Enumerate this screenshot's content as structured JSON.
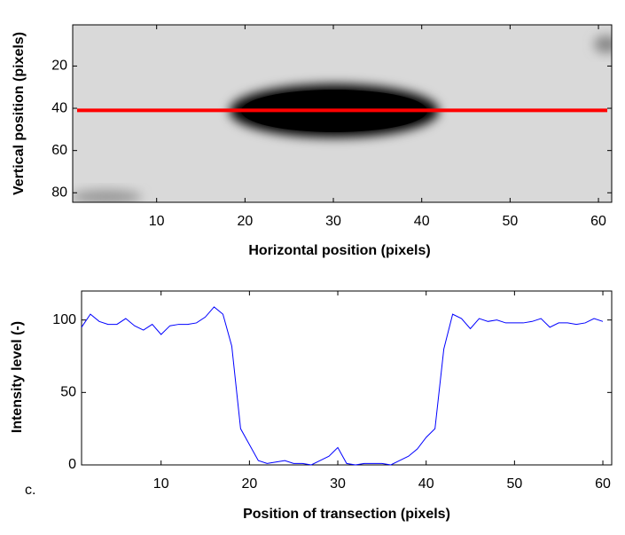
{
  "chart_data": [
    {
      "type": "image",
      "xlabel": "Horizontal position (pixels)",
      "ylabel": "Vertical position (pixels)",
      "xlim": [
        0.5,
        61.5
      ],
      "ylim": [
        0.5,
        84.5
      ],
      "y_inverted": true,
      "xticks": [
        10,
        20,
        30,
        40,
        50,
        60
      ],
      "yticks": [
        20,
        40,
        60,
        80
      ],
      "series": [
        {
          "x": [
            1,
            61
          ],
          "values": [
            41,
            41
          ],
          "color": "#ff0000"
        }
      ]
    },
    {
      "type": "line",
      "xlabel": "Position of transection (pixels)",
      "ylabel": "Intensity level (-)",
      "annotation": "c.",
      "xlim": [
        1,
        61
      ],
      "ylim": [
        0,
        120
      ],
      "xticks": [
        10,
        20,
        30,
        40,
        50,
        60
      ],
      "yticks": [
        0,
        50,
        100
      ],
      "series": [
        {
          "color": "#0000ff",
          "x": [
            1,
            2,
            3,
            4,
            5,
            6,
            7,
            8,
            9,
            10,
            11,
            12,
            13,
            14,
            15,
            16,
            17,
            18,
            19,
            20,
            21,
            22,
            23,
            24,
            25,
            26,
            27,
            28,
            29,
            30,
            31,
            32,
            33,
            34,
            35,
            36,
            37,
            38,
            39,
            40,
            41,
            42,
            43,
            44,
            45,
            46,
            47,
            48,
            49,
            50,
            51,
            52,
            53,
            54,
            55,
            56,
            57,
            58,
            59,
            60
          ],
          "values": [
            95,
            104,
            99,
            97,
            97,
            101,
            96,
            93,
            97,
            90,
            96,
            97,
            97,
            98,
            102,
            109,
            104,
            82,
            25,
            14,
            3,
            1,
            2,
            3,
            1,
            1,
            0,
            3,
            6,
            12,
            1,
            0,
            1,
            1,
            1,
            0,
            3,
            6,
            11,
            19,
            25,
            80,
            104,
            101,
            94,
            101,
            99,
            100,
            98,
            98,
            98,
            99,
            101,
            95,
            98,
            98,
            97,
            98,
            101,
            99
          ]
        }
      ]
    }
  ]
}
